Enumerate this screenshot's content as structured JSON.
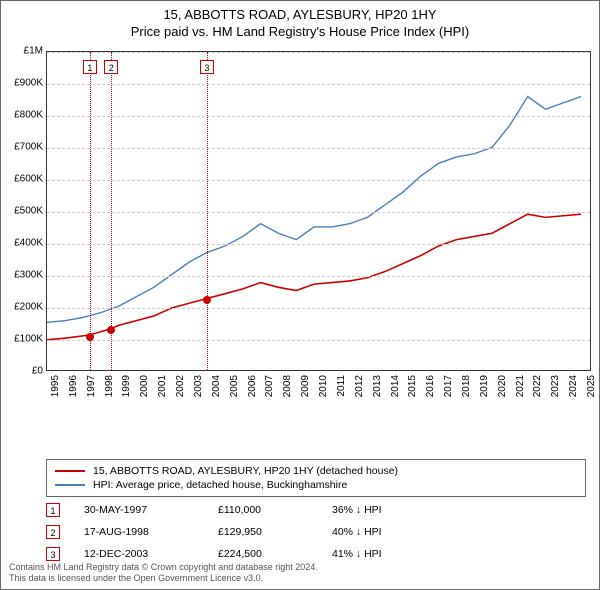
{
  "title": {
    "line1": "15, ABBOTTS ROAD, AYLESBURY, HP20 1HY",
    "line2": "Price paid vs. HM Land Registry's House Price Index (HPI)"
  },
  "chart": {
    "type": "line",
    "background_color": "#ffffff",
    "grid_color": "#cccccc",
    "axis_color": "#333333",
    "xlim": [
      1995,
      2025.5
    ],
    "ylim": [
      0,
      1000000
    ],
    "ytick_step": 100000,
    "ytick_labels": [
      "£0",
      "£100K",
      "£200K",
      "£300K",
      "£400K",
      "£500K",
      "£600K",
      "£700K",
      "£800K",
      "£900K",
      "£1M"
    ],
    "xticks": [
      1995,
      1996,
      1997,
      1998,
      1999,
      2000,
      2001,
      2002,
      2003,
      2004,
      2005,
      2006,
      2007,
      2008,
      2009,
      2010,
      2011,
      2012,
      2013,
      2014,
      2015,
      2016,
      2017,
      2018,
      2019,
      2020,
      2021,
      2022,
      2023,
      2024,
      2025
    ],
    "title_fontsize": 13,
    "label_fontsize": 10,
    "series": [
      {
        "name": "property",
        "label": "15, ABBOTTS ROAD, AYLESBURY, HP20 1HY (detached house)",
        "color": "#cc0000",
        "line_width": 1.6,
        "data": [
          [
            1995,
            95000
          ],
          [
            1996,
            100000
          ],
          [
            1997.4,
            110000
          ],
          [
            1998.6,
            129950
          ],
          [
            1999,
            140000
          ],
          [
            2000,
            155000
          ],
          [
            2001,
            170000
          ],
          [
            2002,
            195000
          ],
          [
            2003.95,
            224500
          ],
          [
            2005,
            240000
          ],
          [
            2006,
            255000
          ],
          [
            2007,
            275000
          ],
          [
            2008,
            260000
          ],
          [
            2009,
            250000
          ],
          [
            2010,
            270000
          ],
          [
            2011,
            275000
          ],
          [
            2012,
            280000
          ],
          [
            2013,
            290000
          ],
          [
            2014,
            310000
          ],
          [
            2015,
            335000
          ],
          [
            2016,
            360000
          ],
          [
            2017,
            390000
          ],
          [
            2018,
            410000
          ],
          [
            2019,
            420000
          ],
          [
            2020,
            430000
          ],
          [
            2021,
            460000
          ],
          [
            2022,
            490000
          ],
          [
            2023,
            480000
          ],
          [
            2024,
            485000
          ],
          [
            2025,
            490000
          ]
        ]
      },
      {
        "name": "hpi",
        "label": "HPI: Average price, detached house, Buckinghamshire",
        "color": "#4a7dbf",
        "line_width": 1.4,
        "data": [
          [
            1995,
            150000
          ],
          [
            1996,
            155000
          ],
          [
            1997,
            165000
          ],
          [
            1998,
            180000
          ],
          [
            1999,
            200000
          ],
          [
            2000,
            230000
          ],
          [
            2001,
            260000
          ],
          [
            2002,
            300000
          ],
          [
            2003,
            340000
          ],
          [
            2004,
            370000
          ],
          [
            2005,
            390000
          ],
          [
            2006,
            420000
          ],
          [
            2007,
            460000
          ],
          [
            2008,
            430000
          ],
          [
            2009,
            410000
          ],
          [
            2010,
            450000
          ],
          [
            2011,
            450000
          ],
          [
            2012,
            460000
          ],
          [
            2013,
            480000
          ],
          [
            2014,
            520000
          ],
          [
            2015,
            560000
          ],
          [
            2016,
            610000
          ],
          [
            2017,
            650000
          ],
          [
            2018,
            670000
          ],
          [
            2019,
            680000
          ],
          [
            2020,
            700000
          ],
          [
            2021,
            770000
          ],
          [
            2022,
            860000
          ],
          [
            2023,
            820000
          ],
          [
            2024,
            840000
          ],
          [
            2025,
            860000
          ]
        ]
      }
    ],
    "sale_points": [
      {
        "x": 1997.4,
        "y": 110000
      },
      {
        "x": 1998.6,
        "y": 129950
      },
      {
        "x": 2003.95,
        "y": 224500
      }
    ],
    "vmarkers": [
      {
        "num": "1",
        "x": 1997.4,
        "color": "#cc0000"
      },
      {
        "num": "2",
        "x": 1998.6,
        "color": "#cc0000"
      },
      {
        "num": "3",
        "x": 2003.95,
        "color": "#cc0000"
      }
    ]
  },
  "legend": {
    "items": [
      {
        "color": "#cc0000",
        "label": "15, ABBOTTS ROAD, AYLESBURY, HP20 1HY (detached house)"
      },
      {
        "color": "#4a7dbf",
        "label": "HPI: Average price, detached house, Buckinghamshire"
      }
    ]
  },
  "markers_table": [
    {
      "num": "1",
      "date": "30-MAY-1997",
      "price": "£110,000",
      "diff": "36% ↓ HPI"
    },
    {
      "num": "2",
      "date": "17-AUG-1998",
      "price": "£129,950",
      "diff": "40% ↓ HPI"
    },
    {
      "num": "3",
      "date": "12-DEC-2003",
      "price": "£224,500",
      "diff": "41% ↓ HPI"
    }
  ],
  "footnote": {
    "line1": "Contains HM Land Registry data © Crown copyright and database right 2024.",
    "line2": "This data is licensed under the Open Government Licence v3.0."
  }
}
